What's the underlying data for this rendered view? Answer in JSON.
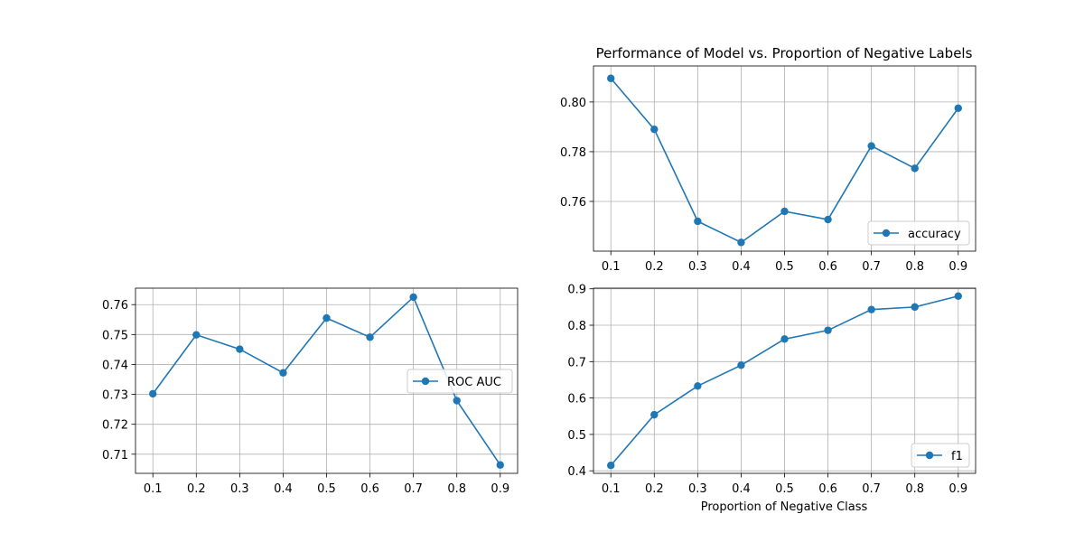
{
  "chart_data": [
    {
      "id": "accuracy",
      "type": "line",
      "title": "Performance of Model vs. Proportion of Negative Labels",
      "xlabel": "",
      "ylabel": "",
      "x": [
        0.1,
        0.2,
        0.3,
        0.4,
        0.5,
        0.6,
        0.7,
        0.8,
        0.9
      ],
      "series": [
        {
          "name": "accuracy",
          "values": [
            0.8095,
            0.789,
            0.752,
            0.7435,
            0.756,
            0.7527,
            0.7823,
            0.7733,
            0.7975
          ],
          "color": "#1f77b4"
        }
      ],
      "xticks": [
        "0.1",
        "0.2",
        "0.3",
        "0.4",
        "0.5",
        "0.6",
        "0.7",
        "0.8",
        "0.9"
      ],
      "yticks": [
        "0.76",
        "0.78",
        "0.80"
      ],
      "xlim": [
        0.06,
        0.94
      ],
      "ylim": [
        0.74,
        0.8145
      ],
      "grid": true,
      "legend": "lower right"
    },
    {
      "id": "roc",
      "type": "line",
      "title": "",
      "xlabel": "",
      "ylabel": "",
      "x": [
        0.1,
        0.2,
        0.3,
        0.4,
        0.5,
        0.6,
        0.7,
        0.8,
        0.9
      ],
      "series": [
        {
          "name": "ROC AUC",
          "values": [
            0.7302,
            0.7499,
            0.7451,
            0.7372,
            0.7555,
            0.7491,
            0.7625,
            0.7279,
            0.7064
          ],
          "color": "#1f77b4"
        }
      ],
      "xticks": [
        "0.1",
        "0.2",
        "0.3",
        "0.4",
        "0.5",
        "0.6",
        "0.7",
        "0.8",
        "0.9"
      ],
      "yticks": [
        "0.71",
        "0.72",
        "0.73",
        "0.74",
        "0.75",
        "0.76"
      ],
      "xlim": [
        0.06,
        0.94
      ],
      "ylim": [
        0.7036,
        0.7655
      ],
      "grid": true,
      "legend": "center right"
    },
    {
      "id": "f1",
      "type": "line",
      "title": "",
      "xlabel": "Proportion of Negative Class",
      "ylabel": "",
      "x": [
        0.1,
        0.2,
        0.3,
        0.4,
        0.5,
        0.6,
        0.7,
        0.8,
        0.9
      ],
      "series": [
        {
          "name": "f1",
          "values": [
            0.4148,
            0.554,
            0.633,
            0.69,
            0.762,
            0.786,
            0.843,
            0.85,
            0.88
          ],
          "color": "#1f77b4"
        }
      ],
      "xticks": [
        "0.1",
        "0.2",
        "0.3",
        "0.4",
        "0.5",
        "0.6",
        "0.7",
        "0.8",
        "0.9"
      ],
      "yticks": [
        "0.4",
        "0.5",
        "0.6",
        "0.7",
        "0.8",
        "0.9"
      ],
      "xlim": [
        0.06,
        0.94
      ],
      "ylim": [
        0.393,
        0.9018
      ],
      "grid": true,
      "legend": "lower right"
    }
  ]
}
